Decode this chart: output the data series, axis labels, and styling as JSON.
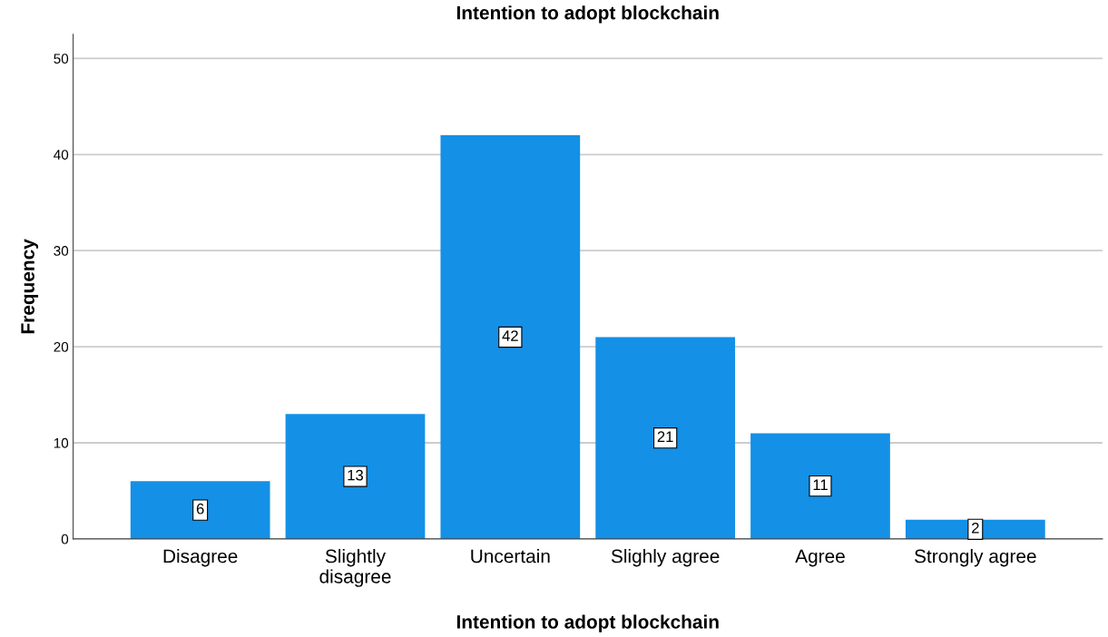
{
  "chart_data": {
    "type": "bar",
    "title": "Intention to adopt blockchain",
    "xlabel": "Intention to adopt blockchain",
    "ylabel": "Frequency",
    "categories": [
      "Disagree",
      "Slightly\ndisagree",
      "Uncertain",
      "Slighly agree",
      "Agree",
      "Strongly agree"
    ],
    "values": [
      6,
      13,
      42,
      21,
      11,
      2
    ],
    "color": "#1490e6",
    "ylim": [
      0,
      52.5
    ],
    "yticks": [
      0,
      10,
      20,
      30,
      40,
      50
    ],
    "grid": "y",
    "data_labels": true
  }
}
